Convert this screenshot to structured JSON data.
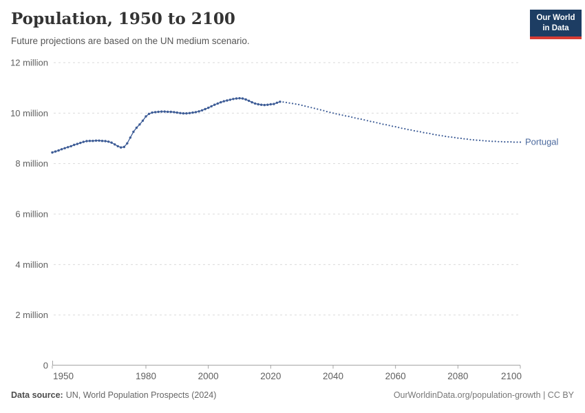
{
  "header": {
    "title": "Population, 1950 to 2100",
    "subtitle": "Future projections are based on the UN medium scenario.",
    "logo": {
      "line1": "Our World",
      "line2": "in Data",
      "bg_color": "#1d3d63",
      "accent_color": "#d73c34"
    }
  },
  "footer": {
    "source_label": "Data source:",
    "source_text": "UN, World Population Prospects (2024)",
    "credit": "OurWorldinData.org/population-growth | CC BY"
  },
  "chart_data": {
    "type": "line",
    "title": "Population, 1950 to 2100",
    "subtitle": "Future projections are based on the UN medium scenario.",
    "entity": "Portugal",
    "end_label": "Portugal",
    "unit": "million",
    "color": "#3d5c96",
    "entity_label_color": "#4c6a9e",
    "grid": true,
    "legend_position": "end-of-line",
    "x_axis": {
      "min": 1950,
      "max": 2100,
      "ticks": [
        1950,
        1980,
        2000,
        2020,
        2040,
        2060,
        2080,
        2100
      ]
    },
    "y_axis": {
      "min": 0,
      "max": 12,
      "ticks": [
        {
          "value": 0,
          "label": "0"
        },
        {
          "value": 2,
          "label": "2 million"
        },
        {
          "value": 4,
          "label": "4 million"
        },
        {
          "value": 6,
          "label": "6 million"
        },
        {
          "value": 8,
          "label": "8 million"
        },
        {
          "value": 10,
          "label": "10 million"
        },
        {
          "value": 12,
          "label": "12 million"
        }
      ]
    },
    "series": [
      {
        "id": "estimates",
        "style": "line+dots",
        "start_year": 1950,
        "end_year": 2023,
        "values": [
          8.44,
          8.48,
          8.52,
          8.57,
          8.61,
          8.65,
          8.69,
          8.74,
          8.78,
          8.82,
          8.86,
          8.89,
          8.9,
          8.9,
          8.91,
          8.91,
          8.9,
          8.89,
          8.87,
          8.83,
          8.76,
          8.69,
          8.64,
          8.66,
          8.8,
          9.03,
          9.26,
          9.42,
          9.55,
          9.7,
          9.87,
          9.97,
          10.02,
          10.04,
          10.05,
          10.06,
          10.06,
          10.05,
          10.05,
          10.04,
          10.02,
          10.0,
          9.99,
          9.99,
          10.0,
          10.02,
          10.04,
          10.07,
          10.11,
          10.16,
          10.21,
          10.27,
          10.33,
          10.38,
          10.43,
          10.47,
          10.5,
          10.53,
          10.56,
          10.58,
          10.59,
          10.58,
          10.54,
          10.49,
          10.43,
          10.38,
          10.35,
          10.33,
          10.32,
          10.33,
          10.35,
          10.36,
          10.41,
          10.45
        ]
      },
      {
        "id": "projection",
        "style": "dots",
        "start_year": 2023,
        "end_year": 2100,
        "values": [
          10.45,
          10.44,
          10.42,
          10.4,
          10.38,
          10.36,
          10.34,
          10.31,
          10.28,
          10.25,
          10.22,
          10.19,
          10.16,
          10.13,
          10.1,
          10.06,
          10.03,
          10.0,
          9.97,
          9.94,
          9.92,
          9.89,
          9.87,
          9.84,
          9.81,
          9.78,
          9.76,
          9.73,
          9.7,
          9.67,
          9.65,
          9.62,
          9.59,
          9.56,
          9.54,
          9.51,
          9.48,
          9.46,
          9.43,
          9.4,
          9.38,
          9.35,
          9.33,
          9.3,
          9.28,
          9.26,
          9.23,
          9.21,
          9.19,
          9.16,
          9.14,
          9.12,
          9.1,
          9.08,
          9.06,
          9.05,
          9.03,
          9.01,
          9.0,
          8.98,
          8.97,
          8.95,
          8.94,
          8.93,
          8.92,
          8.91,
          8.9,
          8.89,
          8.88,
          8.88,
          8.87,
          8.87,
          8.86,
          8.86,
          8.86,
          8.85,
          8.85,
          8.85
        ]
      }
    ]
  }
}
